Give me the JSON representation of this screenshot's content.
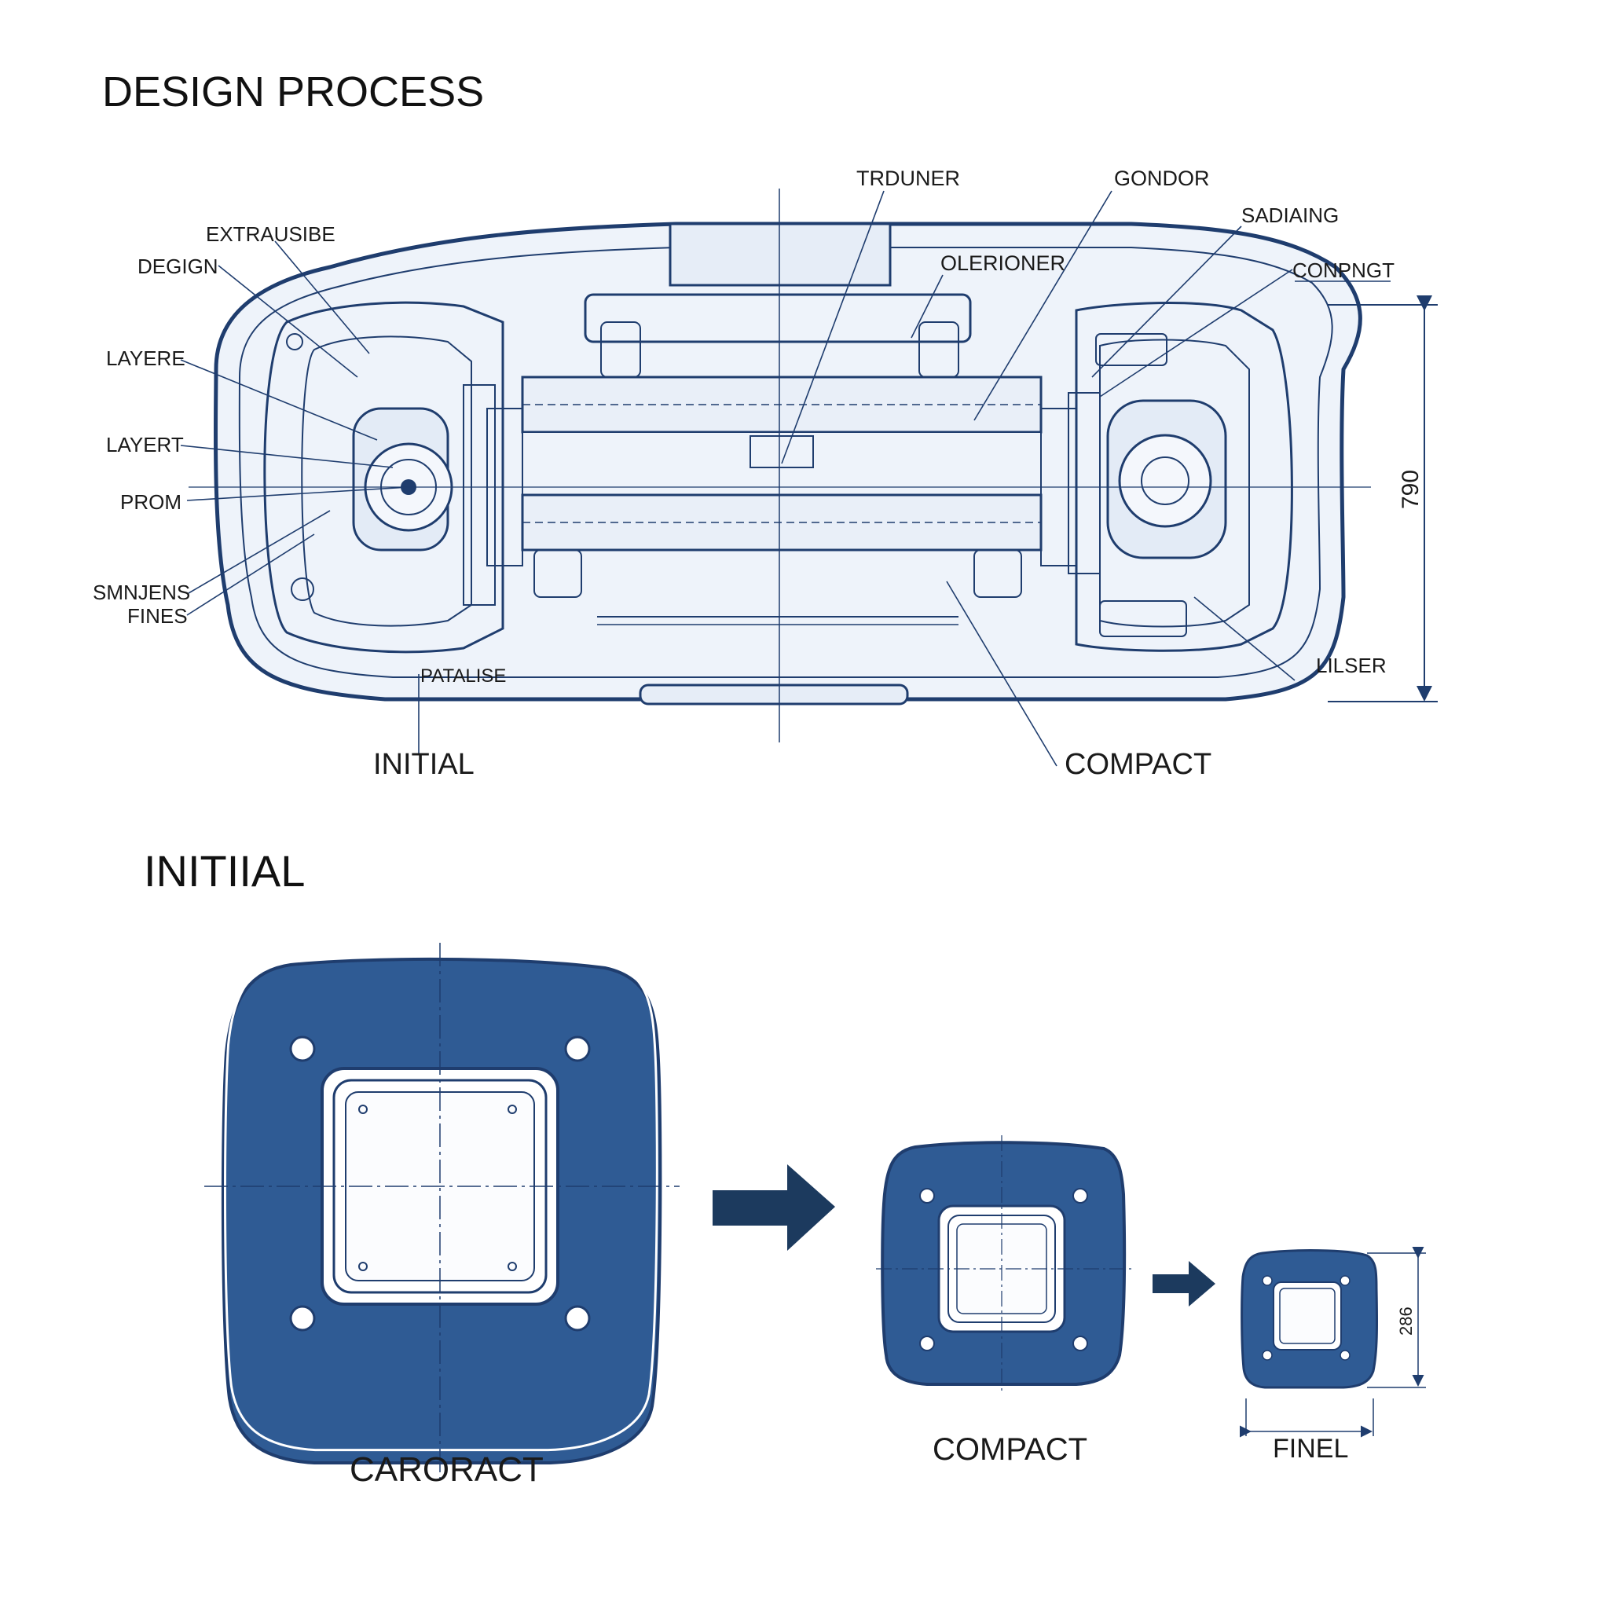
{
  "colors": {
    "ink": "#1f3d6e",
    "fill_light": "#eef3fa",
    "fill_dark": "#2f5b94",
    "arrow": "#1c3a5e",
    "text": "#1a1a1a"
  },
  "headings": {
    "top": "DESIGN PROCESS",
    "bottom": "INITIIAL"
  },
  "top_labels": {
    "extrausibe": "EXTRAUSIBE",
    "deigin": "DEGIGN",
    "layere": "LAYERE",
    "layert": "LAYERT",
    "prom": "PROM",
    "smnjens": "SMNJENS",
    "fines": "FINES",
    "patalise": "PATALISE",
    "trduner": "TRDUNER",
    "gondor": "GONDOR",
    "olerioner": "OLERIONER",
    "sadiaing": "SADIAING",
    "conpngt": "CONPNGT",
    "lilser": "LILSER",
    "initial": "INITIAL",
    "compact": "COMPACT"
  },
  "dimensions": {
    "top": "790",
    "final": "286"
  },
  "stages": [
    {
      "label": "CARORACT"
    },
    {
      "label": "COMPACT"
    },
    {
      "label": "FINEL"
    }
  ]
}
